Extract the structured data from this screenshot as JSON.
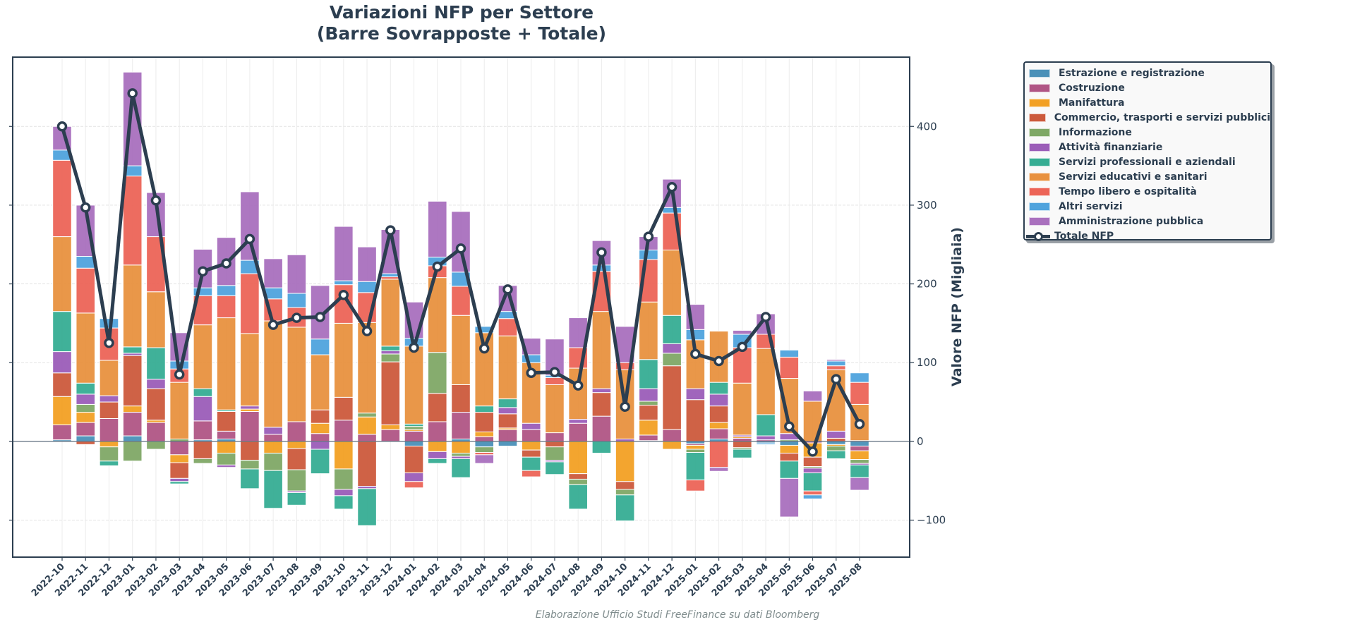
{
  "chart_data": {
    "type": "bar",
    "stacked": true,
    "title": "Variazioni NFP per Settore",
    "subtitle": "(Barre Sovrapposte + Totale)",
    "xlabel": "",
    "ylabel": "Valore NFP (Migliaia)",
    "ylim": [
      -147,
      488
    ],
    "yticks": [
      -100,
      0,
      100,
      200,
      300,
      400
    ],
    "ytick_labels": [
      "−100",
      "0",
      "100",
      "200",
      "300",
      "400"
    ],
    "y_axis_side": "right",
    "grid": true,
    "legend_position": "outside-top-right",
    "categories": [
      "2022-10",
      "2022-11",
      "2022-12",
      "2023-01",
      "2023-02",
      "2023-03",
      "2023-04",
      "2023-05",
      "2023-06",
      "2023-07",
      "2023-08",
      "2023-09",
      "2023-10",
      "2023-11",
      "2023-12",
      "2024-01",
      "2024-02",
      "2024-03",
      "2024-04",
      "2024-05",
      "2024-06",
      "2024-07",
      "2024-08",
      "2024-09",
      "2024-10",
      "2024-11",
      "2024-12",
      "2025-01",
      "2025-02",
      "2025-03",
      "2025-04",
      "2025-05",
      "2025-06",
      "2025-07",
      "2025-08"
    ],
    "series": [
      {
        "name": "Estrazione e registrazione",
        "color": "#4a90b8",
        "values": [
          2,
          7,
          0,
          7,
          0,
          0,
          2,
          3,
          0,
          0,
          0,
          0,
          0,
          0,
          0,
          -6,
          0,
          3,
          -7,
          -6,
          0,
          0,
          0,
          0,
          0,
          1,
          0,
          -3,
          3,
          0,
          -2,
          -5,
          0,
          -4,
          -6
        ]
      },
      {
        "name": "Costruzione",
        "color": "#b05585",
        "values": [
          19,
          17,
          29,
          30,
          24,
          -17,
          24,
          10,
          38,
          9,
          25,
          10,
          27,
          9,
          15,
          13,
          25,
          34,
          6,
          15,
          15,
          11,
          23,
          32,
          0,
          7,
          15,
          -2,
          13,
          4,
          2,
          0,
          -2,
          0,
          -6
        ]
      },
      {
        "name": "Manifattura",
        "color": "#f2a024",
        "values": [
          36,
          13,
          -7,
          8,
          3,
          -10,
          0,
          -15,
          3,
          -15,
          -9,
          13,
          -35,
          22,
          6,
          2,
          -13,
          -15,
          6,
          2,
          -11,
          0,
          -41,
          0,
          -51,
          19,
          -10,
          -5,
          8,
          2,
          0,
          -10,
          -18,
          -2,
          -11
        ]
      },
      {
        "name": "Commercio, trasporti e servizi pubblici",
        "color": "#cc5a3c",
        "values": [
          30,
          -4,
          21,
          64,
          40,
          -20,
          -22,
          25,
          -24,
          0,
          -27,
          17,
          29,
          -57,
          80,
          -34,
          36,
          35,
          25,
          18,
          -9,
          -7,
          -7,
          30,
          -10,
          19,
          81,
          53,
          21,
          -8,
          0,
          -10,
          -12,
          4,
          1
        ]
      },
      {
        "name": "Informazione",
        "color": "#7fa866",
        "values": [
          0,
          10,
          -18,
          -25,
          -10,
          3,
          -6,
          -15,
          -11,
          -22,
          -27,
          0,
          -26,
          5,
          10,
          4,
          52,
          -4,
          -7,
          0,
          0,
          -17,
          -7,
          0,
          -7,
          5,
          16,
          -4,
          0,
          -2,
          0,
          2,
          -2,
          -6,
          -5
        ]
      },
      {
        "name": "Attività finanziarie",
        "color": "#9b5db8",
        "values": [
          27,
          13,
          8,
          3,
          12,
          -4,
          31,
          -3,
          4,
          9,
          -2,
          -10,
          -8,
          -3,
          4,
          -11,
          -9,
          -3,
          0,
          8,
          8,
          -2,
          5,
          5,
          3,
          16,
          12,
          14,
          15,
          2,
          5,
          8,
          -6,
          9,
          -2
        ]
      },
      {
        "name": "Servizi professionali e aziendali",
        "color": "#36ad93",
        "values": [
          51,
          14,
          -6,
          8,
          40,
          -3,
          10,
          2,
          -25,
          -48,
          -16,
          -31,
          -17,
          -47,
          6,
          3,
          -6,
          -24,
          8,
          11,
          -17,
          -16,
          -31,
          -15,
          -33,
          37,
          36,
          -35,
          15,
          -11,
          27,
          -22,
          -23,
          -10,
          -16
        ]
      },
      {
        "name": "Servizi educativi e sanitari",
        "color": "#e8913f",
        "values": [
          95,
          89,
          45,
          104,
          71,
          72,
          81,
          117,
          92,
          135,
          120,
          70,
          94,
          115,
          85,
          99,
          95,
          88,
          93,
          80,
          77,
          61,
          65,
          98,
          88,
          73,
          83,
          62,
          65,
          66,
          84,
          70,
          51,
          78,
          46
        ]
      },
      {
        "name": "Tempo libero e ospitalità",
        "color": "#ec6457",
        "values": [
          97,
          57,
          41,
          113,
          70,
          17,
          37,
          28,
          76,
          28,
          25,
          0,
          49,
          38,
          3,
          -8,
          15,
          37,
          -3,
          22,
          -8,
          9,
          26,
          51,
          9,
          54,
          47,
          -14,
          -33,
          45,
          18,
          27,
          -5,
          5,
          28
        ]
      },
      {
        "name": "Altri servizi",
        "color": "#4fa3dd",
        "values": [
          13,
          15,
          12,
          13,
          0,
          10,
          10,
          13,
          17,
          14,
          18,
          20,
          5,
          14,
          4,
          10,
          11,
          18,
          8,
          9,
          10,
          3,
          0,
          8,
          0,
          12,
          7,
          13,
          0,
          17,
          -2,
          9,
          -5,
          6,
          12
        ]
      },
      {
        "name": "Amministrazione pubblica",
        "color": "#a970be",
        "values": [
          30,
          65,
          0,
          119,
          56,
          36,
          49,
          61,
          87,
          37,
          49,
          68,
          69,
          44,
          56,
          46,
          71,
          77,
          -11,
          33,
          21,
          46,
          38,
          31,
          46,
          17,
          36,
          32,
          -5,
          5,
          26,
          -49,
          13,
          2,
          -16
        ]
      }
    ],
    "total": {
      "name": "Totale NFP",
      "color": "#2c3e50",
      "values": [
        400,
        297,
        125,
        442,
        306,
        85,
        216,
        226,
        257,
        148,
        157,
        158,
        186,
        140,
        268,
        119,
        222,
        245,
        118,
        193,
        87,
        88,
        71,
        240,
        44,
        260,
        323,
        111,
        102,
        120,
        158,
        19,
        -13,
        79,
        22
      ]
    },
    "footer": "Elaborazione Ufficio Studi FreeFinance su dati Bloomberg"
  }
}
